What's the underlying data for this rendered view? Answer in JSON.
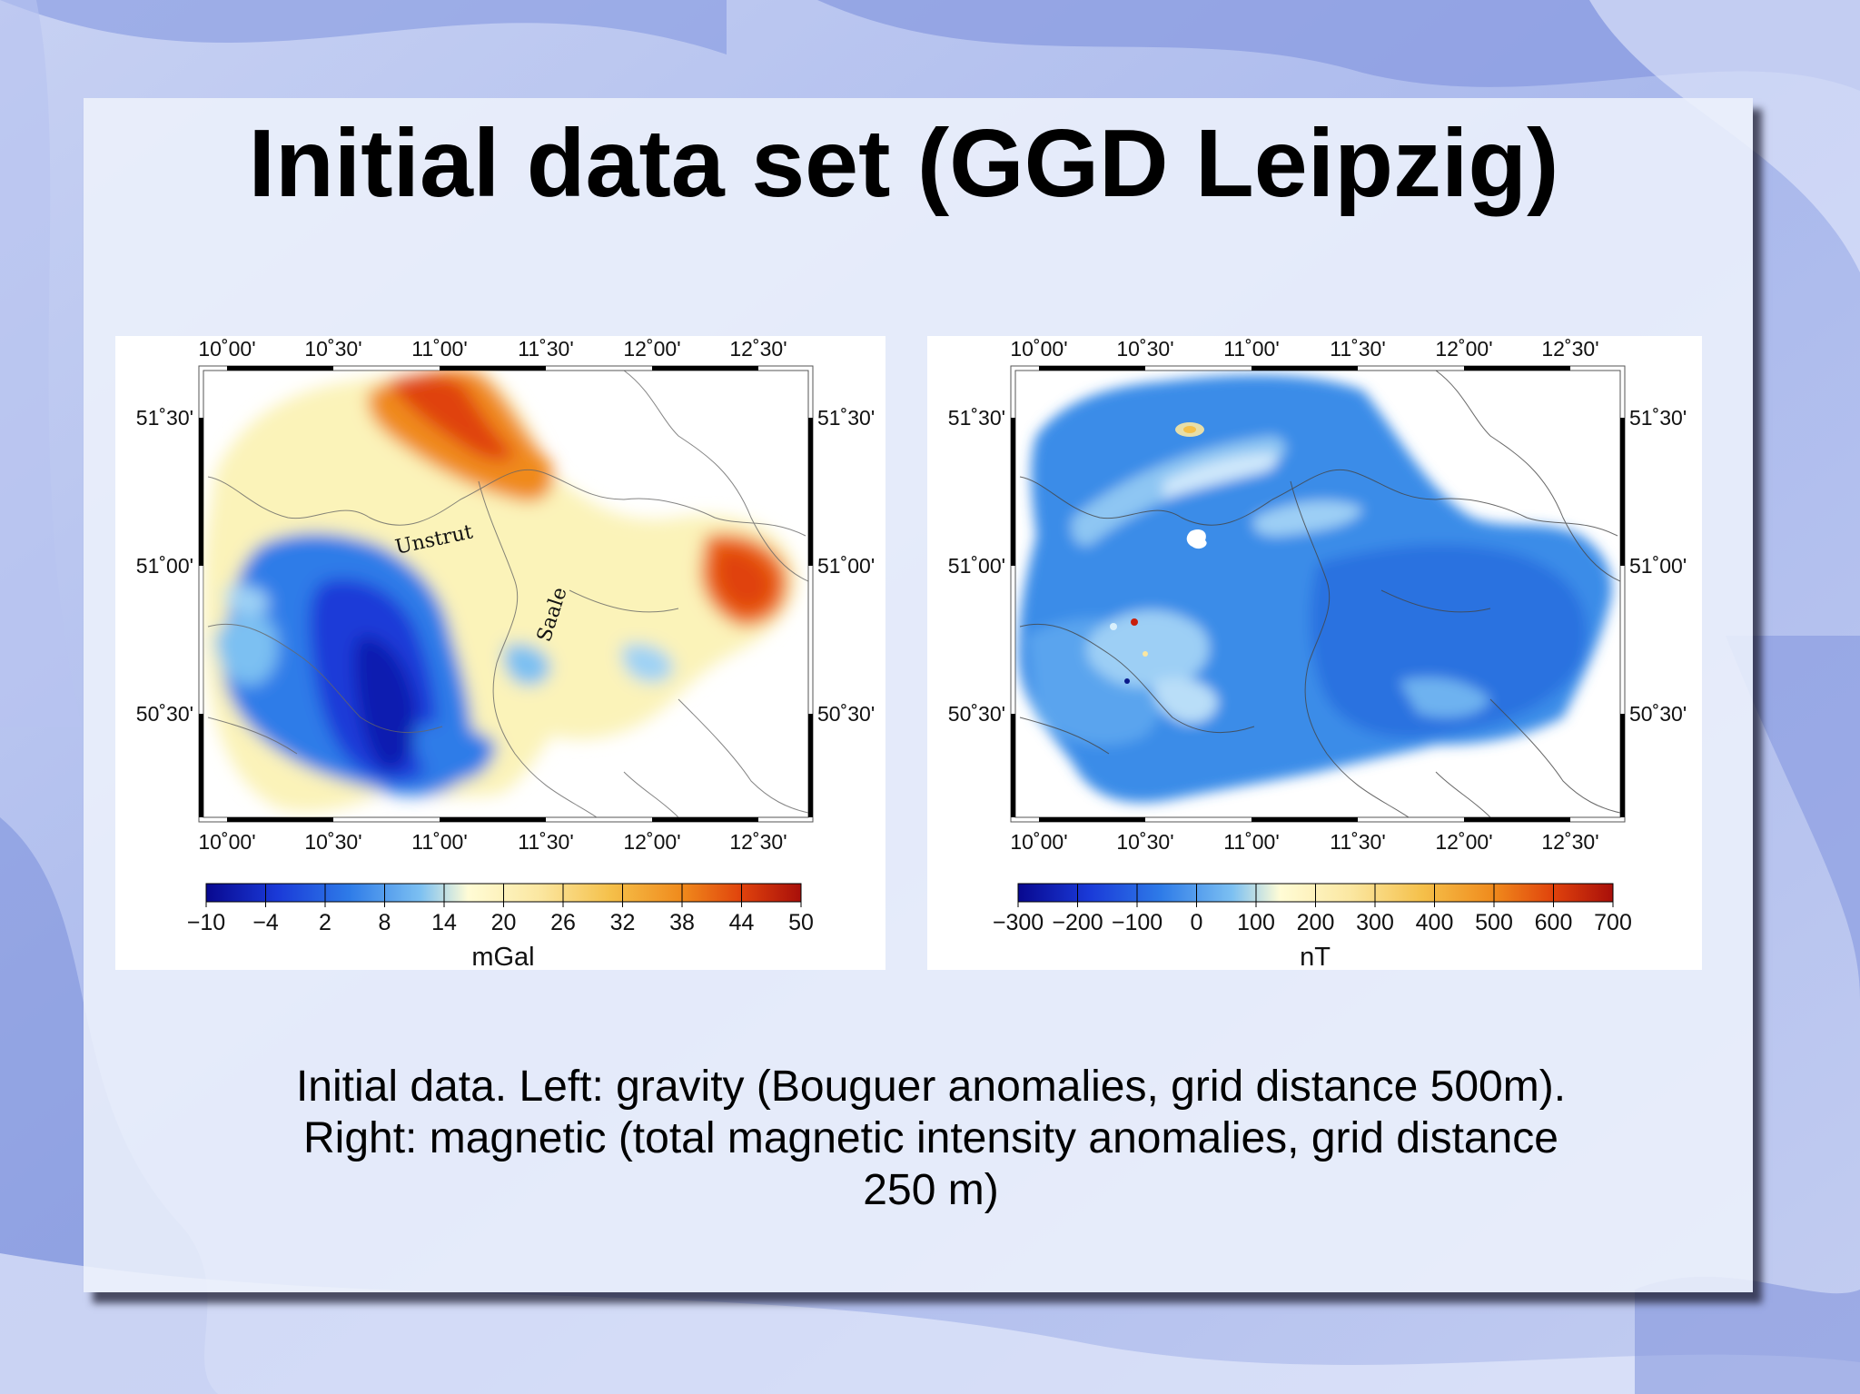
{
  "slide": {
    "title": "Initial data set (GGD Leipzig)",
    "caption_lines": [
      "Initial data. Left: gravity (Bouguer anomalies, grid distance 500m).",
      "Right: magnetic (total magnetic intensity anomalies, grid distance",
      "250 m)"
    ]
  },
  "maps": {
    "lon_ticks": [
      "10˚00'",
      "10˚30'",
      "11˚00'",
      "11˚30'",
      "12˚00'",
      "12˚30'"
    ],
    "lat_ticks": [
      "51˚30'",
      "51˚00'",
      "50˚30'"
    ],
    "left": {
      "colorbar_ticks": [
        "−10",
        "−4",
        "2",
        "8",
        "14",
        "20",
        "26",
        "32",
        "38",
        "44",
        "50"
      ],
      "unit": "mGal",
      "rivers": [
        "Unstrut",
        "Saale"
      ]
    },
    "right": {
      "colorbar_ticks": [
        "−300",
        "−200",
        "−100",
        "0",
        "100",
        "200",
        "300",
        "400",
        "500",
        "600",
        "700"
      ],
      "unit": "nT"
    }
  },
  "colors": {
    "colormap": [
      "#08088f",
      "#1a3ad8",
      "#2e7be8",
      "#7cc0f2",
      "#fffcd6",
      "#fbe7a1",
      "#f5c04a",
      "#f08a1c",
      "#e0420c",
      "#a80f0a"
    ]
  }
}
